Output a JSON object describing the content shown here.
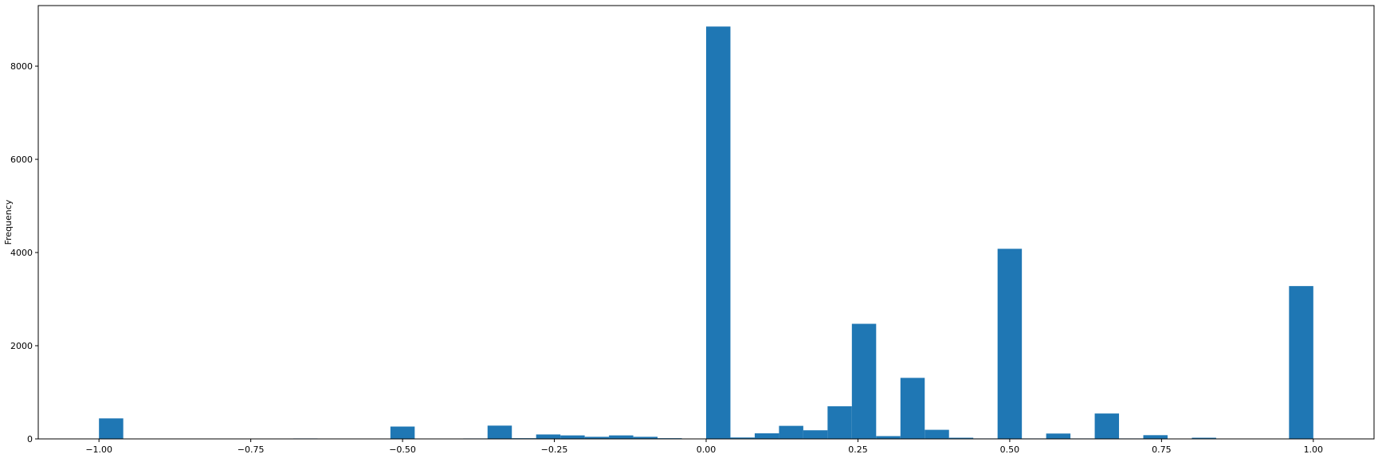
{
  "chart_data": {
    "type": "bar",
    "title": "",
    "xlabel": "",
    "ylabel": "Frequency",
    "xlim": [
      -1.1,
      1.1
    ],
    "ylim": [
      0,
      9300
    ],
    "grid": false,
    "color": "#1f77b4",
    "bin_width": 0.04,
    "x_ticks": [
      -1.0,
      -0.75,
      -0.5,
      -0.25,
      0.0,
      0.25,
      0.5,
      0.75,
      1.0
    ],
    "x_tick_labels": [
      "−1.00",
      "−0.75",
      "−0.50",
      "−0.25",
      "0.00",
      "0.25",
      "0.50",
      "0.75",
      "1.00"
    ],
    "y_ticks": [
      0,
      2000,
      4000,
      6000,
      8000
    ],
    "y_tick_labels": [
      "0",
      "2000",
      "4000",
      "6000",
      "8000"
    ],
    "bins": [
      {
        "x": -1.0,
        "value": 440
      },
      {
        "x": -0.68,
        "value": 10
      },
      {
        "x": -0.52,
        "value": 265
      },
      {
        "x": -0.4,
        "value": 10
      },
      {
        "x": -0.36,
        "value": 285
      },
      {
        "x": -0.32,
        "value": 15
      },
      {
        "x": -0.28,
        "value": 95
      },
      {
        "x": -0.24,
        "value": 75
      },
      {
        "x": -0.2,
        "value": 45
      },
      {
        "x": -0.16,
        "value": 75
      },
      {
        "x": -0.12,
        "value": 45
      },
      {
        "x": -0.08,
        "value": 15
      },
      {
        "x": 0.0,
        "value": 8850
      },
      {
        "x": 0.04,
        "value": 30
      },
      {
        "x": 0.08,
        "value": 120
      },
      {
        "x": 0.12,
        "value": 280
      },
      {
        "x": 0.16,
        "value": 185
      },
      {
        "x": 0.2,
        "value": 700
      },
      {
        "x": 0.24,
        "value": 2470
      },
      {
        "x": 0.28,
        "value": 60
      },
      {
        "x": 0.32,
        "value": 1310
      },
      {
        "x": 0.36,
        "value": 195
      },
      {
        "x": 0.4,
        "value": 25
      },
      {
        "x": 0.44,
        "value": 10
      },
      {
        "x": 0.48,
        "value": 4080
      },
      {
        "x": 0.52,
        "value": 10
      },
      {
        "x": 0.56,
        "value": 115
      },
      {
        "x": 0.6,
        "value": 10
      },
      {
        "x": 0.64,
        "value": 545
      },
      {
        "x": 0.68,
        "value": 10
      },
      {
        "x": 0.72,
        "value": 80
      },
      {
        "x": 0.8,
        "value": 25
      },
      {
        "x": 0.96,
        "value": 3280
      }
    ]
  }
}
